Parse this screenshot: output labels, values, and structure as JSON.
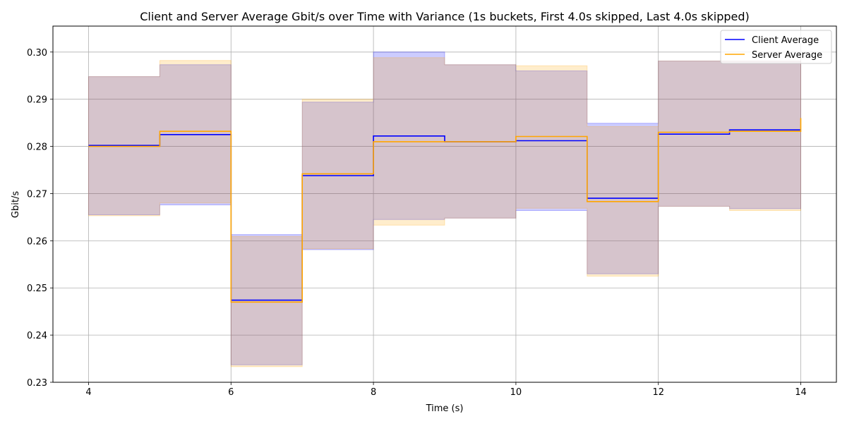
{
  "chart_data": {
    "type": "line",
    "title": "Client and Server Average Gbit/s over Time with Variance (1s buckets, First 4.0s skipped, Last 4.0s skipped)",
    "xlabel": "Time (s)",
    "ylabel": "Gbit/s",
    "xlim": [
      3.5,
      14.5
    ],
    "ylim": [
      0.23,
      0.3055
    ],
    "xticks": [
      4,
      6,
      8,
      10,
      12,
      14
    ],
    "yticks": [
      0.23,
      0.24,
      0.25,
      0.26,
      0.27,
      0.28,
      0.29,
      0.3
    ],
    "grid": true,
    "legend_position": "top-right",
    "step": "post",
    "x": [
      4,
      5,
      6,
      7,
      8,
      9,
      10,
      11,
      12,
      13,
      14
    ],
    "series": [
      {
        "name": "Client Average",
        "color": "#0000ff",
        "band_color": "#0000ff",
        "values": [
          0.2802,
          0.2825,
          0.2474,
          0.2738,
          0.2822,
          0.281,
          0.2812,
          0.269,
          0.2826,
          0.2835,
          0.2835
        ],
        "lower": [
          0.2655,
          0.2676,
          0.2337,
          0.2581,
          0.2645,
          0.2648,
          0.2664,
          0.253,
          0.2673,
          0.2668,
          0.2668
        ],
        "upper": [
          0.2948,
          0.2973,
          0.2613,
          0.2894,
          0.3,
          0.2973,
          0.296,
          0.2849,
          0.2981,
          0.2981,
          0.2981
        ]
      },
      {
        "name": "Server Average",
        "color": "#ffa500",
        "band_color": "#ffa500",
        "values": [
          0.28,
          0.2832,
          0.247,
          0.2742,
          0.281,
          0.281,
          0.2821,
          0.2683,
          0.283,
          0.2832,
          0.286
        ],
        "lower": [
          0.2653,
          0.268,
          0.2333,
          0.2583,
          0.2633,
          0.2648,
          0.2669,
          0.2525,
          0.2673,
          0.2664,
          0.2664
        ],
        "upper": [
          0.2948,
          0.2982,
          0.2609,
          0.29,
          0.2988,
          0.2973,
          0.2971,
          0.2842,
          0.2981,
          0.2981,
          0.2981
        ]
      }
    ]
  }
}
